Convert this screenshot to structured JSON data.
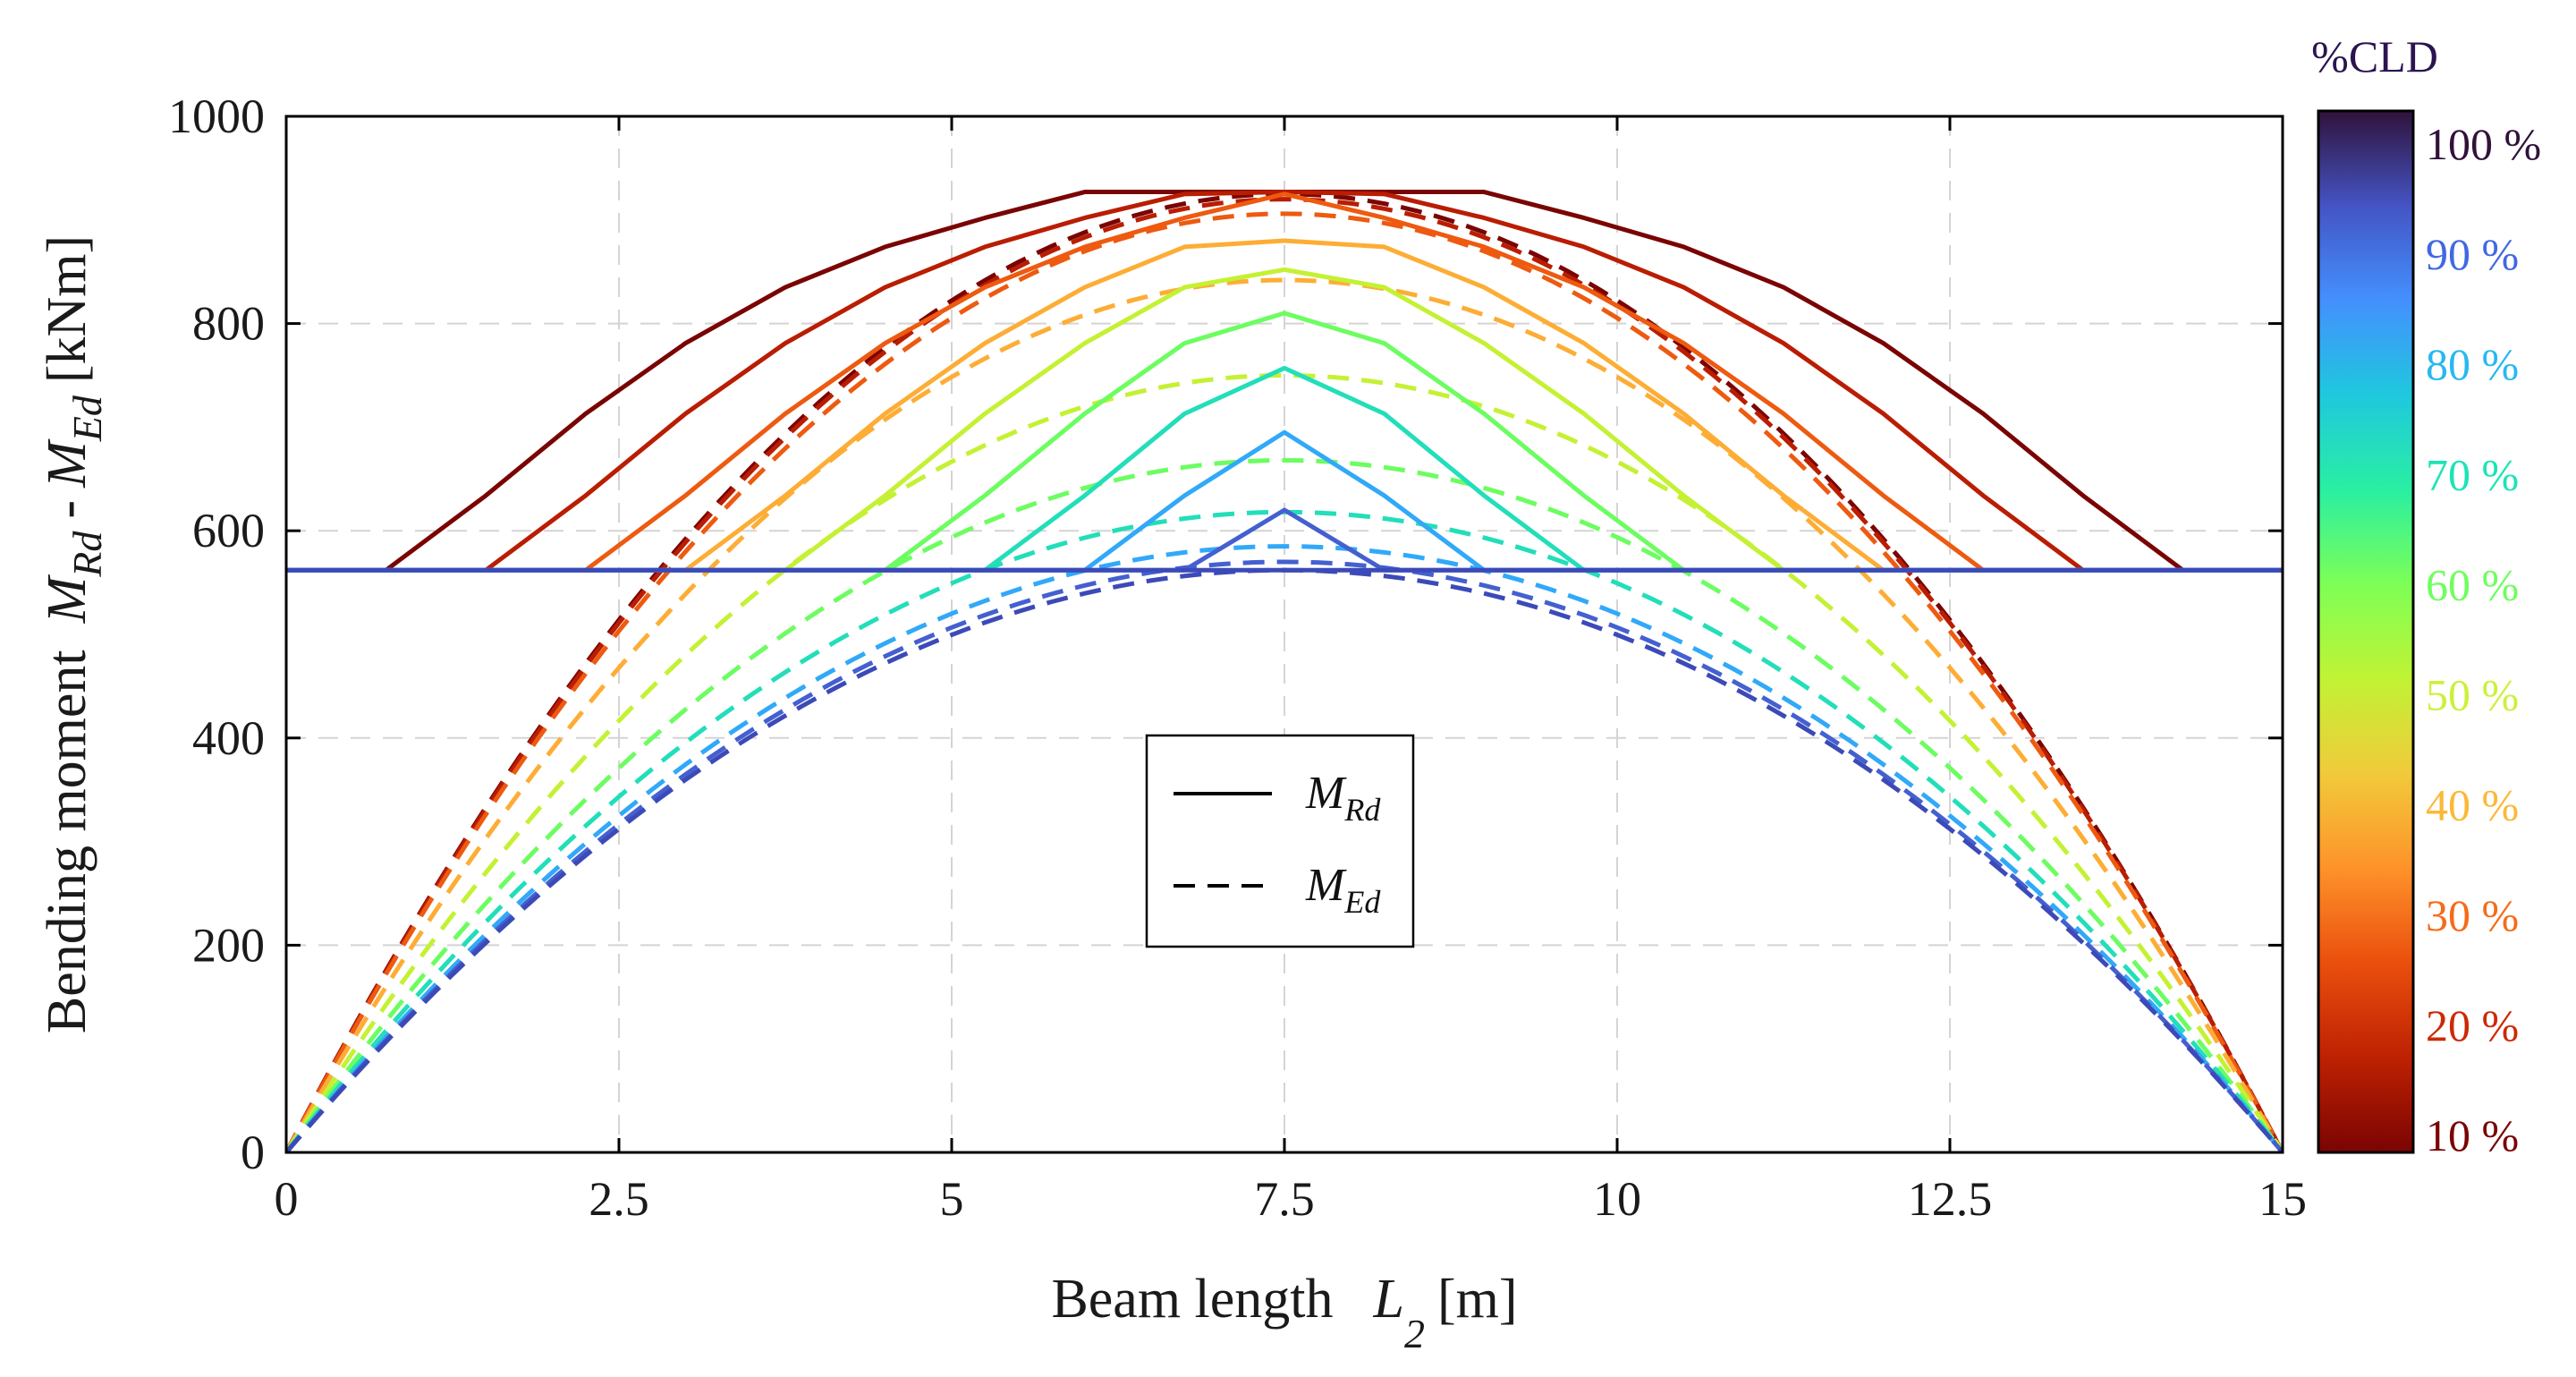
{
  "chart_data": {
    "type": "line",
    "xlabel_main": "Beam length",
    "xlabel_symbol": "L",
    "xlabel_sub": "2",
    "xlabel_unit": "[m]",
    "ylabel_main": "Bending moment",
    "ylabel_sym1": "M",
    "ylabel_sub1": "Rd",
    "ylabel_sep": "-",
    "ylabel_sym2": "M",
    "ylabel_sub2": "Ed",
    "ylabel_unit": "[kNm]",
    "xlim": [
      0,
      15
    ],
    "ylim": [
      0,
      1000
    ],
    "x_ticks": [
      0,
      2.5,
      5,
      7.5,
      10,
      12.5,
      15
    ],
    "x_tick_labels": [
      "0",
      "2.5",
      "5",
      "7.5",
      "10",
      "12.5",
      "15"
    ],
    "y_ticks": [
      0,
      200,
      400,
      600,
      800,
      1000
    ],
    "y_tick_labels": [
      "0",
      "200",
      "400",
      "600",
      "800",
      "1000"
    ],
    "grid": true,
    "legend": {
      "position": "center",
      "entries": [
        {
          "symbol": "M",
          "sub": "Rd",
          "style": "solid"
        },
        {
          "symbol": "M",
          "sub": "Ed",
          "style": "dashed"
        }
      ]
    },
    "colorbar": {
      "title": "%CLD",
      "ticks": [
        "100 %",
        "90 %",
        "80 %",
        "70 %",
        "60 %",
        "50 %",
        "40 %",
        "30 %",
        "20 %",
        "10 %"
      ],
      "tick_colors": [
        "#30123b",
        "#4168e3",
        "#29b8f0",
        "#1be4b6",
        "#6ffe5f",
        "#cbf13b",
        "#fbb938",
        "#f66b19",
        "#cb2a04",
        "#7a0403"
      ],
      "gradient_top_to_bottom": [
        "#30123b",
        "#4454c4",
        "#4490fe",
        "#1fc8de",
        "#29efa2",
        "#7dff56",
        "#c1f334",
        "#f1ca3a",
        "#fe922a",
        "#ea4f0d",
        "#be2102",
        "#7a0403"
      ]
    },
    "mrd_base": 562,
    "series": [
      {
        "cld": "10 %",
        "color": "#7a0403",
        "mrd_peak": 927,
        "mrd_x": [
          0,
          0.75,
          1.5,
          2.25,
          3.0,
          3.75,
          4.5,
          5.25,
          6.0,
          9.0,
          9.75,
          10.5,
          11.25,
          12.0,
          12.75,
          13.5,
          14.25,
          15
        ],
        "mrd_y": [
          562,
          562,
          634,
          713,
          781,
          835,
          874,
          902,
          927,
          927,
          902,
          874,
          835,
          781,
          713,
          634,
          562,
          562
        ],
        "med_peak": 925
      },
      {
        "cld": "20 %",
        "color": "#b91d02",
        "mrd_peak": 927,
        "mrd_x": [
          0,
          1.5,
          2.25,
          3.0,
          3.75,
          4.5,
          5.25,
          6.0,
          6.75,
          7.5,
          8.25,
          9.0,
          9.75,
          10.5,
          11.25,
          12.0,
          12.75,
          13.5,
          15
        ],
        "mrd_y": [
          562,
          562,
          634,
          713,
          781,
          835,
          874,
          902,
          925,
          927,
          925,
          902,
          874,
          835,
          781,
          713,
          634,
          562,
          562
        ],
        "med_peak": 920
      },
      {
        "cld": "30 %",
        "color": "#ed5a10",
        "mrd_peak": 925,
        "mrd_x": [
          0,
          2.25,
          3.0,
          3.75,
          4.5,
          5.25,
          6.0,
          6.75,
          7.5,
          8.25,
          9.0,
          9.75,
          10.5,
          11.25,
          12.0,
          12.75,
          15
        ],
        "mrd_y": [
          562,
          562,
          634,
          713,
          781,
          835,
          874,
          902,
          925,
          902,
          874,
          835,
          781,
          713,
          634,
          562,
          562
        ],
        "med_peak": 906
      },
      {
        "cld": "40 %",
        "color": "#fdad35",
        "mrd_peak": 880,
        "mrd_x": [
          0,
          3.0,
          3.75,
          4.5,
          5.25,
          6.0,
          6.75,
          7.5,
          8.25,
          9.0,
          9.75,
          10.5,
          11.25,
          12.0,
          15
        ],
        "mrd_y": [
          562,
          562,
          634,
          713,
          781,
          835,
          874,
          880,
          874,
          835,
          781,
          713,
          634,
          562,
          562
        ],
        "med_peak": 842
      },
      {
        "cld": "50 %",
        "color": "#c4f133",
        "mrd_peak": 852,
        "mrd_x": [
          0,
          3.75,
          4.5,
          5.25,
          6.0,
          6.75,
          7.5,
          8.25,
          9.0,
          9.75,
          10.5,
          11.25,
          15
        ],
        "mrd_y": [
          562,
          562,
          634,
          713,
          781,
          835,
          852,
          835,
          781,
          713,
          634,
          562,
          562
        ],
        "med_peak": 750
      },
      {
        "cld": "60 %",
        "color": "#6cfd60",
        "mrd_peak": 810,
        "mrd_x": [
          0,
          4.5,
          5.25,
          6.0,
          6.75,
          7.5,
          8.25,
          9.0,
          9.75,
          10.5,
          15
        ],
        "mrd_y": [
          562,
          562,
          634,
          713,
          781,
          810,
          781,
          713,
          634,
          562,
          562
        ],
        "med_peak": 668
      },
      {
        "cld": "70 %",
        "color": "#22deb9",
        "mrd_peak": 757,
        "mrd_x": [
          0,
          5.25,
          6.0,
          6.75,
          7.5,
          8.25,
          9.0,
          9.75,
          15
        ],
        "mrd_y": [
          562,
          562,
          634,
          713,
          757,
          713,
          634,
          562,
          562
        ],
        "med_peak": 618
      },
      {
        "cld": "80 %",
        "color": "#31a9f8",
        "mrd_peak": 695,
        "mrd_x": [
          0,
          6.0,
          6.75,
          7.5,
          8.25,
          9.0,
          15
        ],
        "mrd_y": [
          562,
          562,
          634,
          695,
          634,
          562,
          562
        ],
        "med_peak": 585
      },
      {
        "cld": "90 %",
        "color": "#4460d0",
        "mrd_peak": 620,
        "mrd_x": [
          0,
          6.75,
          7.5,
          8.25,
          15
        ],
        "mrd_y": [
          562,
          562,
          620,
          562,
          562
        ],
        "med_peak": 570
      },
      {
        "cld": "100 %",
        "color": "#3c4ab8",
        "mrd_peak": 562,
        "mrd_x": [
          0,
          15
        ],
        "mrd_y": [
          562,
          562
        ],
        "med_peak": 562
      }
    ]
  }
}
